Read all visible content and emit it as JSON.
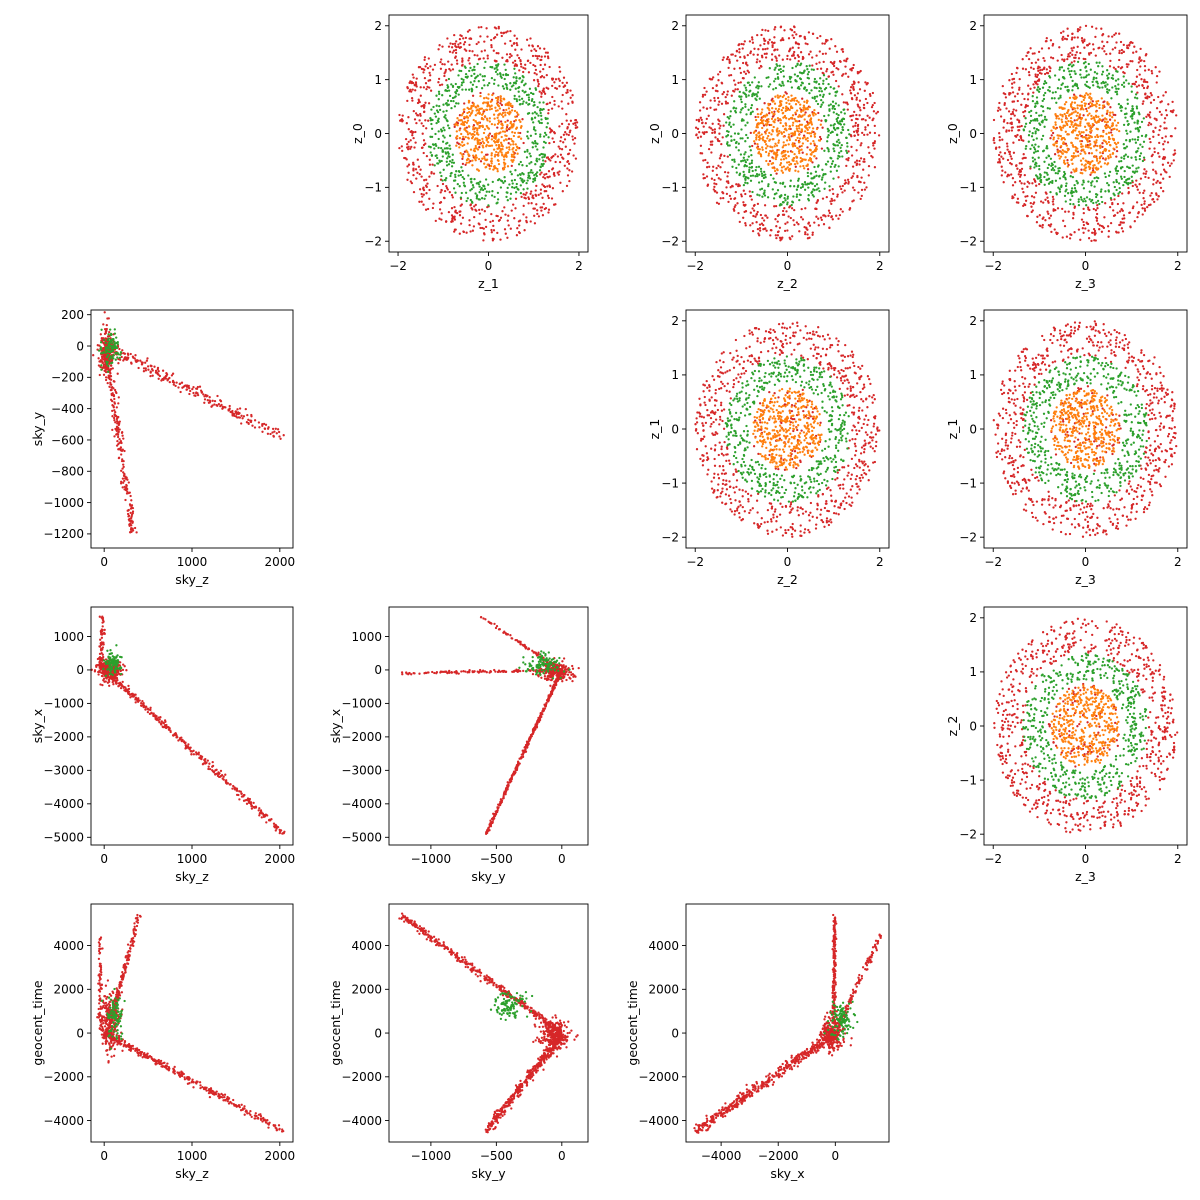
{
  "colors": {
    "background": "#ffffff",
    "axis": "#000000",
    "z_ring_outer": "#d62728",
    "z_ring_middle": "#2ca02c",
    "z_ring_inner": "#ff7f0e",
    "sky_points_main": "#d62728",
    "sky_points_secondary": "#2ca02c"
  },
  "chart_data": [
    {
      "type": "scatter",
      "xlabel": "z_1",
      "ylabel": "z_0",
      "xlim": [
        -2.2,
        2.2
      ],
      "ylim": [
        -2.2,
        2.2
      ],
      "xticks": [
        -2,
        0,
        2
      ],
      "yticks": [
        -2,
        -1,
        0,
        1,
        2
      ],
      "pattern": "rings",
      "seed": 11,
      "rings": [
        {
          "name": "outer",
          "r": [
            1.35,
            2.0
          ],
          "n": 700,
          "color": "#d62728"
        },
        {
          "name": "middle",
          "r": [
            0.85,
            1.35
          ],
          "n": 500,
          "color": "#2ca02c"
        },
        {
          "name": "inner",
          "r": [
            0.0,
            0.75
          ],
          "n": 420,
          "color": "#ff7f0e"
        },
        {
          "name": "inner-mixed",
          "r": [
            0.0,
            0.8
          ],
          "n": 80,
          "color": "#d62728"
        }
      ]
    },
    {
      "type": "scatter",
      "xlabel": "z_2",
      "ylabel": "z_0",
      "xlim": [
        -2.2,
        2.2
      ],
      "ylim": [
        -2.2,
        2.2
      ],
      "xticks": [
        -2,
        0,
        2
      ],
      "yticks": [
        -2,
        -1,
        0,
        1,
        2
      ],
      "pattern": "rings",
      "seed": 12,
      "rings": [
        {
          "name": "outer",
          "r": [
            1.35,
            2.0
          ],
          "n": 700,
          "color": "#d62728"
        },
        {
          "name": "middle",
          "r": [
            0.85,
            1.35
          ],
          "n": 500,
          "color": "#2ca02c"
        },
        {
          "name": "inner",
          "r": [
            0.0,
            0.75
          ],
          "n": 420,
          "color": "#ff7f0e"
        },
        {
          "name": "inner-mixed",
          "r": [
            0.0,
            0.8
          ],
          "n": 80,
          "color": "#d62728"
        }
      ]
    },
    {
      "type": "scatter",
      "xlabel": "z_3",
      "ylabel": "z_0",
      "xlim": [
        -2.2,
        2.2
      ],
      "ylim": [
        -2.2,
        2.2
      ],
      "xticks": [
        -2,
        0,
        2
      ],
      "yticks": [
        -2,
        -1,
        0,
        1,
        2
      ],
      "pattern": "rings",
      "seed": 13,
      "rings": [
        {
          "name": "outer",
          "r": [
            1.35,
            2.0
          ],
          "n": 700,
          "color": "#d62728"
        },
        {
          "name": "middle",
          "r": [
            0.85,
            1.35
          ],
          "n": 500,
          "color": "#2ca02c"
        },
        {
          "name": "inner",
          "r": [
            0.0,
            0.75
          ],
          "n": 420,
          "color": "#ff7f0e"
        },
        {
          "name": "inner-mixed",
          "r": [
            0.0,
            0.8
          ],
          "n": 80,
          "color": "#d62728"
        }
      ]
    },
    {
      "type": "scatter",
      "xlabel": "sky_z",
      "ylabel": "sky_y",
      "xlim": [
        -150,
        2150
      ],
      "ylim": [
        -1290,
        230
      ],
      "xticks": [
        0,
        1000,
        2000
      ],
      "yticks": [
        -1200,
        -1000,
        -800,
        -600,
        -400,
        -200,
        0,
        200
      ],
      "pattern": "arms",
      "seed": 21,
      "arms": [
        {
          "from": [
            20,
            0
          ],
          "to": [
            2040,
            -580
          ],
          "n": 260,
          "spread": 30,
          "color": "#d62728"
        },
        {
          "from": [
            20,
            -20
          ],
          "to": [
            330,
            -1200
          ],
          "n": 230,
          "spread": 22,
          "color": "#d62728"
        }
      ],
      "blobs": [
        {
          "center": [
            30,
            -40
          ],
          "sd": [
            45,
            70
          ],
          "n": 240,
          "color": "#d62728"
        },
        {
          "center": [
            80,
            -30
          ],
          "sd": [
            55,
            60
          ],
          "n": 100,
          "color": "#2ca02c"
        }
      ]
    },
    {
      "type": "scatter",
      "xlabel": "z_2",
      "ylabel": "z_1",
      "xlim": [
        -2.2,
        2.2
      ],
      "ylim": [
        -2.2,
        2.2
      ],
      "xticks": [
        -2,
        0,
        2
      ],
      "yticks": [
        -2,
        -1,
        0,
        1,
        2
      ],
      "pattern": "rings",
      "seed": 14,
      "rings": [
        {
          "name": "outer",
          "r": [
            1.35,
            2.0
          ],
          "n": 700,
          "color": "#d62728"
        },
        {
          "name": "middle",
          "r": [
            0.85,
            1.35
          ],
          "n": 500,
          "color": "#2ca02c"
        },
        {
          "name": "inner",
          "r": [
            0.0,
            0.75
          ],
          "n": 420,
          "color": "#ff7f0e"
        },
        {
          "name": "inner-mixed",
          "r": [
            0.0,
            0.8
          ],
          "n": 80,
          "color": "#d62728"
        }
      ]
    },
    {
      "type": "scatter",
      "xlabel": "z_3",
      "ylabel": "z_1",
      "xlim": [
        -2.2,
        2.2
      ],
      "ylim": [
        -2.2,
        2.2
      ],
      "xticks": [
        -2,
        0,
        2
      ],
      "yticks": [
        -2,
        -1,
        0,
        1,
        2
      ],
      "pattern": "rings",
      "seed": 15,
      "rings": [
        {
          "name": "outer",
          "r": [
            1.35,
            2.0
          ],
          "n": 700,
          "color": "#d62728"
        },
        {
          "name": "middle",
          "r": [
            0.85,
            1.35
          ],
          "n": 500,
          "color": "#2ca02c"
        },
        {
          "name": "inner",
          "r": [
            0.0,
            0.75
          ],
          "n": 420,
          "color": "#ff7f0e"
        },
        {
          "name": "inner-mixed",
          "r": [
            0.0,
            0.8
          ],
          "n": 80,
          "color": "#d62728"
        }
      ]
    },
    {
      "type": "scatter",
      "xlabel": "sky_z",
      "ylabel": "sky_x",
      "xlim": [
        -150,
        2150
      ],
      "ylim": [
        -5230,
        1880
      ],
      "xticks": [
        0,
        1000,
        2000
      ],
      "yticks": [
        -5000,
        -4000,
        -3000,
        -2000,
        -1000,
        0,
        1000
      ],
      "pattern": "arms",
      "seed": 22,
      "arms": [
        {
          "from": [
            0,
            0
          ],
          "to": [
            2050,
            -4900
          ],
          "n": 380,
          "spread": 45,
          "color": "#d62728"
        },
        {
          "from": [
            -40,
            100
          ],
          "to": [
            -20,
            1600
          ],
          "n": 70,
          "spread": 40,
          "color": "#d62728"
        }
      ],
      "blobs": [
        {
          "center": [
            60,
            0
          ],
          "sd": [
            70,
            160
          ],
          "n": 240,
          "color": "#d62728"
        },
        {
          "center": [
            100,
            200
          ],
          "sd": [
            50,
            180
          ],
          "n": 100,
          "color": "#2ca02c"
        }
      ]
    },
    {
      "type": "scatter",
      "xlabel": "sky_y",
      "ylabel": "sky_x",
      "xlim": [
        -1320,
        200
      ],
      "ylim": [
        -5230,
        1880
      ],
      "xticks": [
        -1000,
        -500,
        0
      ],
      "yticks": [
        -5000,
        -4000,
        -3000,
        -2000,
        -1000,
        0,
        1000
      ],
      "pattern": "arms",
      "seed": 23,
      "arms": [
        {
          "from": [
            0,
            0
          ],
          "to": [
            -580,
            -4900
          ],
          "n": 420,
          "spread": 22,
          "color": "#d62728"
        },
        {
          "from": [
            0,
            0
          ],
          "to": [
            -1230,
            -100
          ],
          "n": 160,
          "spread": 18,
          "color": "#d62728"
        },
        {
          "from": [
            -30,
            50
          ],
          "to": [
            -620,
            1600
          ],
          "n": 90,
          "spread": 20,
          "color": "#d62728"
        }
      ],
      "blobs": [
        {
          "center": [
            -50,
            -50
          ],
          "sd": [
            60,
            140
          ],
          "n": 240,
          "color": "#d62728"
        },
        {
          "center": [
            -150,
            150
          ],
          "sd": [
            70,
            150
          ],
          "n": 110,
          "color": "#2ca02c"
        }
      ]
    },
    {
      "type": "scatter",
      "xlabel": "z_3",
      "ylabel": "z_2",
      "xlim": [
        -2.2,
        2.2
      ],
      "ylim": [
        -2.2,
        2.2
      ],
      "xticks": [
        -2,
        0,
        2
      ],
      "yticks": [
        -2,
        -1,
        0,
        1,
        2
      ],
      "pattern": "rings",
      "seed": 16,
      "rings": [
        {
          "name": "outer",
          "r": [
            1.35,
            2.0
          ],
          "n": 700,
          "color": "#d62728"
        },
        {
          "name": "middle",
          "r": [
            0.85,
            1.35
          ],
          "n": 500,
          "color": "#2ca02c"
        },
        {
          "name": "inner",
          "r": [
            0.0,
            0.75
          ],
          "n": 420,
          "color": "#ff7f0e"
        },
        {
          "name": "inner-mixed",
          "r": [
            0.0,
            0.8
          ],
          "n": 80,
          "color": "#d62728"
        }
      ]
    },
    {
      "type": "scatter",
      "xlabel": "sky_z",
      "ylabel": "geocent_time",
      "xlim": [
        -150,
        2150
      ],
      "ylim": [
        -4980,
        5900
      ],
      "xticks": [
        0,
        1000,
        2000
      ],
      "yticks": [
        -4000,
        -2000,
        0,
        2000,
        4000
      ],
      "pattern": "arms",
      "seed": 24,
      "arms": [
        {
          "from": [
            0,
            0
          ],
          "to": [
            2050,
            -4500
          ],
          "n": 360,
          "spread": 70,
          "color": "#d62728"
        },
        {
          "from": [
            60,
            200
          ],
          "to": [
            390,
            5400
          ],
          "n": 190,
          "spread": 60,
          "color": "#d62728"
        },
        {
          "from": [
            -40,
            300
          ],
          "to": [
            -50,
            4400
          ],
          "n": 60,
          "spread": 50,
          "color": "#d62728"
        }
      ],
      "blobs": [
        {
          "center": [
            60,
            500
          ],
          "sd": [
            60,
            700
          ],
          "n": 230,
          "color": "#d62728"
        },
        {
          "center": [
            120,
            600
          ],
          "sd": [
            45,
            500
          ],
          "n": 100,
          "color": "#2ca02c"
        }
      ]
    },
    {
      "type": "scatter",
      "xlabel": "sky_y",
      "ylabel": "geocent_time",
      "xlim": [
        -1320,
        200
      ],
      "ylim": [
        -4980,
        5900
      ],
      "xticks": [
        -1000,
        -500,
        0
      ],
      "yticks": [
        -4000,
        -2000,
        0,
        2000,
        4000
      ],
      "pattern": "arms",
      "seed": 25,
      "arms": [
        {
          "from": [
            0,
            0
          ],
          "to": [
            -1230,
            5400
          ],
          "n": 420,
          "spread": 80,
          "color": "#d62728"
        },
        {
          "from": [
            0,
            -100
          ],
          "to": [
            -580,
            -4500
          ],
          "n": 420,
          "spread": 110,
          "color": "#d62728"
        }
      ],
      "blobs": [
        {
          "center": [
            -60,
            -100
          ],
          "sd": [
            60,
            350
          ],
          "n": 220,
          "color": "#d62728"
        },
        {
          "center": [
            -400,
            1300
          ],
          "sd": [
            60,
            350
          ],
          "n": 100,
          "color": "#2ca02c"
        }
      ]
    },
    {
      "type": "scatter",
      "xlabel": "sky_x",
      "ylabel": "geocent_time",
      "xlim": [
        -5230,
        1880
      ],
      "ylim": [
        -4980,
        5900
      ],
      "xticks": [
        -4000,
        -2000,
        0
      ],
      "yticks": [
        -4000,
        -2000,
        0,
        2000,
        4000
      ],
      "pattern": "arms",
      "seed": 26,
      "arms": [
        {
          "from": [
            0,
            0
          ],
          "to": [
            -4900,
            -4500
          ],
          "n": 520,
          "spread": 120,
          "color": "#d62728"
        },
        {
          "from": [
            -50,
            500
          ],
          "to": [
            -20,
            5400
          ],
          "n": 200,
          "spread": 40,
          "color": "#d62728"
        },
        {
          "from": [
            100,
            300
          ],
          "to": [
            1600,
            4500
          ],
          "n": 110,
          "spread": 60,
          "color": "#d62728"
        }
      ],
      "blobs": [
        {
          "center": [
            -100,
            0
          ],
          "sd": [
            180,
            400
          ],
          "n": 240,
          "color": "#d62728"
        },
        {
          "center": [
            200,
            600
          ],
          "sd": [
            200,
            400
          ],
          "n": 110,
          "color": "#2ca02c"
        }
      ]
    }
  ]
}
